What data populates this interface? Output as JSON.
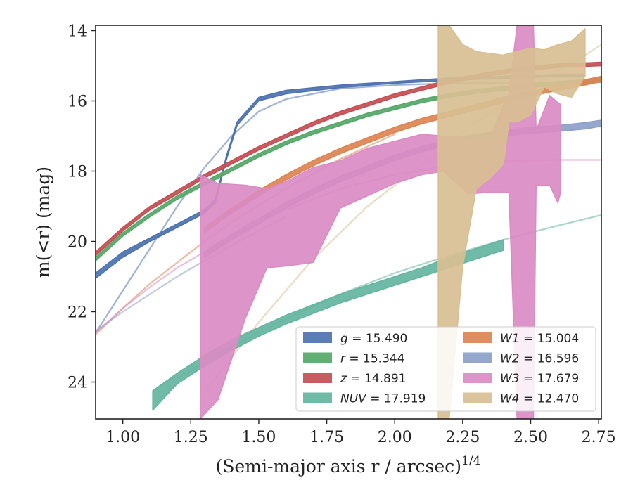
{
  "chart_data": {
    "type": "line",
    "xlabel": "(Semi-major axis r / arcsec)",
    "xlabel_exponent": "1/4",
    "ylabel": "m(<r) (mag)",
    "xlim": [
      0.9,
      2.76
    ],
    "ylim": [
      25.05,
      13.85
    ],
    "y_inverted": true,
    "grid": false,
    "legend_position": "lower-right",
    "x_ticks": [
      {
        "value": 1.0,
        "label": "1.00"
      },
      {
        "value": 1.25,
        "label": "1.25"
      },
      {
        "value": 1.5,
        "label": "1.50"
      },
      {
        "value": 1.75,
        "label": "1.75"
      },
      {
        "value": 2.0,
        "label": "2.00"
      },
      {
        "value": 2.25,
        "label": "2.25"
      },
      {
        "value": 2.5,
        "label": "2.50"
      },
      {
        "value": 2.75,
        "label": "2.75"
      }
    ],
    "y_ticks": [
      {
        "value": 14,
        "label": "14"
      },
      {
        "value": 16,
        "label": "16"
      },
      {
        "value": 18,
        "label": "18"
      },
      {
        "value": 20,
        "label": "20"
      },
      {
        "value": 22,
        "label": "22"
      },
      {
        "value": 24,
        "label": "24"
      }
    ],
    "series": [
      {
        "name": "g",
        "value": "15.490",
        "color": "#4c72b0",
        "kind": "band",
        "x": [
          0.9,
          1.0,
          1.1,
          1.2,
          1.3,
          1.34,
          1.38,
          1.42,
          1.5,
          1.6,
          1.8,
          2.0,
          2.2,
          2.4,
          2.6,
          2.7
        ],
        "ylow": [
          20.9,
          20.3,
          19.9,
          19.5,
          19.1,
          18.8,
          17.6,
          16.6,
          15.9,
          15.7,
          15.55,
          15.45,
          15.35,
          15.3,
          15.25,
          15.25
        ],
        "yhigh": [
          21.05,
          20.45,
          20.0,
          19.6,
          19.2,
          18.9,
          17.7,
          16.7,
          16.0,
          15.8,
          15.62,
          15.5,
          15.42,
          15.36,
          15.3,
          15.3
        ],
        "model": {
          "x": [
            0.9,
            1.0,
            1.1,
            1.2,
            1.3,
            1.4,
            1.5,
            1.6,
            1.8,
            2.0,
            2.2,
            2.5,
            2.76
          ],
          "y": [
            22.6,
            21.4,
            20.2,
            19.0,
            17.9,
            17.0,
            16.3,
            15.95,
            15.65,
            15.55,
            15.5,
            15.48,
            15.47
          ]
        }
      },
      {
        "name": "r",
        "value": "15.344",
        "color": "#55a868",
        "kind": "band",
        "x": [
          0.9,
          1.0,
          1.1,
          1.2,
          1.3,
          1.4,
          1.5,
          1.6,
          1.7,
          1.8,
          1.9,
          2.0,
          2.1,
          2.2,
          2.3,
          2.4,
          2.5,
          2.6,
          2.7,
          2.76
        ],
        "ylow": [
          20.45,
          19.75,
          19.2,
          18.7,
          18.3,
          17.9,
          17.5,
          17.15,
          16.85,
          16.6,
          16.35,
          16.15,
          15.95,
          15.8,
          15.68,
          15.6,
          15.52,
          15.45,
          15.4,
          15.35
        ],
        "yhigh": [
          20.55,
          19.85,
          19.3,
          18.8,
          18.4,
          18.0,
          17.6,
          17.25,
          16.95,
          16.7,
          16.45,
          16.25,
          16.05,
          15.9,
          15.78,
          15.7,
          15.62,
          15.55,
          15.5,
          15.45
        ]
      },
      {
        "name": "z",
        "value": "14.891",
        "color": "#c44e52",
        "kind": "band",
        "x": [
          0.9,
          1.0,
          1.1,
          1.2,
          1.3,
          1.4,
          1.5,
          1.6,
          1.7,
          1.8,
          1.9,
          2.0,
          2.1,
          2.2,
          2.3,
          2.4,
          2.5,
          2.6,
          2.7,
          2.76
        ],
        "ylow": [
          20.3,
          19.6,
          19.0,
          18.55,
          18.1,
          17.7,
          17.3,
          16.95,
          16.6,
          16.3,
          16.05,
          15.8,
          15.6,
          15.4,
          15.25,
          15.12,
          15.02,
          14.95,
          14.92,
          14.9
        ],
        "yhigh": [
          20.4,
          19.7,
          19.1,
          18.65,
          18.2,
          17.8,
          17.4,
          17.05,
          16.7,
          16.4,
          16.15,
          15.9,
          15.7,
          15.5,
          15.35,
          15.22,
          15.12,
          15.05,
          15.02,
          15.0
        ]
      },
      {
        "name": "NUV",
        "value": "17.919",
        "color": "#64b5a0",
        "kind": "band",
        "x": [
          1.11,
          1.2,
          1.3,
          1.4,
          1.5,
          1.6,
          1.7,
          1.8,
          1.9,
          2.0,
          2.1,
          2.2,
          2.3,
          2.4
        ],
        "ylow": [
          24.8,
          24.05,
          23.55,
          23.1,
          22.7,
          22.35,
          22.05,
          21.75,
          21.5,
          21.25,
          21.0,
          20.75,
          20.5,
          20.25
        ],
        "yhigh": [
          24.25,
          23.75,
          23.25,
          22.8,
          22.45,
          22.1,
          21.8,
          21.5,
          21.25,
          21.0,
          20.75,
          20.45,
          20.2,
          19.95
        ],
        "model": {
          "x": [
            1.2,
            1.4,
            1.6,
            1.8,
            2.0,
            2.2,
            2.4,
            2.6,
            2.76
          ],
          "y": [
            23.9,
            23.0,
            22.2,
            21.5,
            20.9,
            20.4,
            19.95,
            19.55,
            19.25
          ]
        }
      },
      {
        "name": "W1",
        "value": "15.004",
        "color": "#dd8452",
        "kind": "band",
        "x": [
          1.3,
          1.4,
          1.5,
          1.6,
          1.7,
          1.8,
          1.9,
          2.0,
          2.1,
          2.2,
          2.3,
          2.4,
          2.5,
          2.6,
          2.7,
          2.76
        ],
        "ylow": [
          19.6,
          19.05,
          18.55,
          18.1,
          17.7,
          17.35,
          17.05,
          16.75,
          16.5,
          16.3,
          16.1,
          15.9,
          15.72,
          15.55,
          15.4,
          15.3
        ],
        "yhigh": [
          19.75,
          19.2,
          18.7,
          18.25,
          17.85,
          17.5,
          17.2,
          16.9,
          16.65,
          16.45,
          16.25,
          16.05,
          15.87,
          15.7,
          15.55,
          15.45
        ],
        "model": {
          "x": [
            0.9,
            1.0,
            1.1,
            1.2,
            1.3,
            1.4,
            1.6,
            1.8,
            2.0
          ],
          "y": [
            22.65,
            21.9,
            21.2,
            20.6,
            20.0,
            19.45,
            18.5,
            17.65,
            16.95
          ]
        }
      },
      {
        "name": "W2",
        "value": "16.596",
        "color": "#8c9fc8",
        "kind": "band",
        "x": [
          1.3,
          1.4,
          1.5,
          1.6,
          1.7,
          1.8,
          1.9,
          2.0,
          2.1,
          2.2,
          2.3,
          2.4,
          2.5,
          2.6,
          2.7,
          2.76
        ],
        "ylow": [
          20.3,
          19.8,
          19.35,
          18.9,
          18.5,
          18.15,
          17.85,
          17.55,
          17.3,
          17.1,
          16.95,
          16.85,
          16.75,
          16.7,
          16.62,
          16.55
        ],
        "yhigh": [
          20.45,
          19.95,
          19.5,
          19.05,
          18.65,
          18.3,
          18.0,
          17.7,
          17.45,
          17.25,
          17.1,
          17.0,
          16.92,
          16.87,
          16.8,
          16.72
        ],
        "model": {
          "x": [
            0.9,
            1.0,
            1.1,
            1.2,
            1.3,
            1.45,
            1.6
          ],
          "y": [
            22.55,
            22.0,
            21.5,
            21.0,
            20.55,
            19.9,
            19.3
          ]
        }
      },
      {
        "name": "W3",
        "value": "17.679",
        "color": "#da8bc3",
        "kind": "band",
        "x": [
          1.285,
          1.35,
          1.45,
          1.53,
          1.6,
          1.7,
          1.8,
          1.9,
          2.0,
          2.1,
          2.18,
          2.27,
          2.35,
          2.42,
          2.45,
          2.47,
          2.51,
          2.52,
          2.57,
          2.6,
          2.61
        ],
        "ylow": [
          25.05,
          24.5,
          22.2,
          20.75,
          20.7,
          20.6,
          19.05,
          18.7,
          18.35,
          18.1,
          18.0,
          18.65,
          18.6,
          18.6,
          25.05,
          25.05,
          25.05,
          18.4,
          18.4,
          18.9,
          18.6
        ],
        "yhigh": [
          18.1,
          18.35,
          18.4,
          18.5,
          18.3,
          17.9,
          17.7,
          17.35,
          17.15,
          16.95,
          17.0,
          17.05,
          17.05,
          15.8,
          13.85,
          13.85,
          13.85,
          16.85,
          15.85,
          16.05,
          16.1
        ],
        "model": {
          "x": [
            0.9,
            1.0,
            1.1,
            1.2,
            1.3,
            1.4,
            1.6,
            1.8,
            2.0,
            2.2,
            2.4,
            2.5,
            2.6,
            2.76
          ],
          "y": [
            22.6,
            21.9,
            21.3,
            20.75,
            20.3,
            19.85,
            19.1,
            18.5,
            18.1,
            17.85,
            17.72,
            17.7,
            17.68,
            17.68
          ]
        }
      },
      {
        "name": "W4",
        "value": "12.470",
        "color": "#d8bf92",
        "kind": "band",
        "x": [
          2.16,
          2.17,
          2.2,
          2.25,
          2.3,
          2.35,
          2.4,
          2.42,
          2.45,
          2.5,
          2.55,
          2.6,
          2.65,
          2.7
        ],
        "ylow": [
          25.05,
          25.05,
          25.05,
          20.7,
          18.5,
          18.2,
          17.8,
          16.6,
          16.6,
          16.4,
          15.6,
          15.8,
          15.9,
          15.3
        ],
        "yhigh": [
          13.85,
          13.85,
          13.85,
          14.4,
          14.6,
          14.65,
          14.7,
          14.65,
          14.6,
          14.5,
          14.55,
          14.4,
          14.3,
          13.95
        ],
        "model": {
          "x": [
            1.3,
            1.5,
            1.7,
            1.9,
            2.1,
            2.3,
            2.5,
            2.7,
            2.76
          ],
          "y": [
            24.3,
            22.3,
            20.5,
            19.0,
            17.8,
            16.6,
            15.6,
            14.7,
            14.4
          ]
        }
      }
    ],
    "legend": [
      {
        "name": "g",
        "value": "15.490",
        "color": "#4c72b0"
      },
      {
        "name": "r",
        "value": "15.344",
        "color": "#55a868"
      },
      {
        "name": "z",
        "value": "14.891",
        "color": "#c44e52"
      },
      {
        "name": "NUV",
        "value": "17.919",
        "color": "#64b5a0"
      },
      {
        "name": "W1",
        "value": "15.004",
        "color": "#dd8452"
      },
      {
        "name": "W2",
        "value": "16.596",
        "color": "#8c9fc8"
      },
      {
        "name": "W3",
        "value": "17.679",
        "color": "#da8bc3"
      },
      {
        "name": "W4",
        "value": "12.470",
        "color": "#d8bf92"
      }
    ]
  }
}
